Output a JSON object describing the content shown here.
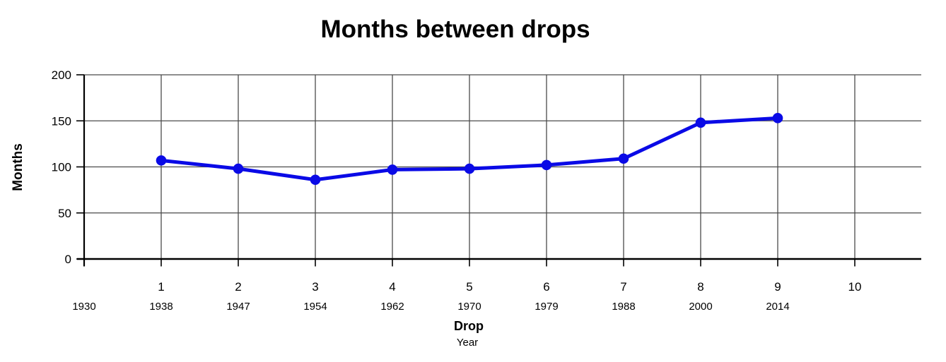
{
  "chart_data": {
    "type": "line",
    "title": "Months between drops",
    "ylabel": "Months",
    "xlabel": "Drop",
    "xlabel_sub": "Year",
    "ylim": [
      0,
      200
    ],
    "yticks": [
      0,
      50,
      100,
      150,
      200
    ],
    "xticks": [
      1,
      2,
      3,
      4,
      5,
      6,
      7,
      8,
      9,
      10
    ],
    "x_years": [
      {
        "tick": 0,
        "year": "1930"
      },
      {
        "tick": 1,
        "year": "1938"
      },
      {
        "tick": 2,
        "year": "1947"
      },
      {
        "tick": 3,
        "year": "1954"
      },
      {
        "tick": 4,
        "year": "1962"
      },
      {
        "tick": 5,
        "year": "1970"
      },
      {
        "tick": 6,
        "year": "1979"
      },
      {
        "tick": 7,
        "year": "1988"
      },
      {
        "tick": 8,
        "year": "2000"
      },
      {
        "tick": 9,
        "year": "2014"
      }
    ],
    "series": [
      {
        "name": "Months between drops",
        "x": [
          1,
          2,
          3,
          4,
          5,
          6,
          7,
          8,
          9
        ],
        "values": [
          107,
          98,
          86,
          97,
          98,
          102,
          109,
          148,
          153
        ],
        "color": "#0a0ae6"
      }
    ],
    "grid": true,
    "legend": false,
    "colors": {
      "axis": "#000000",
      "gridline": "#4a4a4a",
      "tick": "#000000",
      "background": "#ffffff",
      "text": "#000000"
    }
  }
}
